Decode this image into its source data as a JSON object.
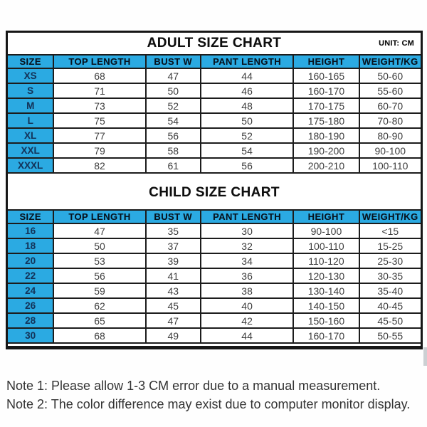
{
  "colors": {
    "header_blue": "#2baae2",
    "grid_line": "#1c1c1c",
    "size_text_navy": "#14365c"
  },
  "charts": [
    {
      "id": "adult",
      "title": "ADULT SIZE CHART",
      "unit": "UNIT: CM",
      "columns": [
        "SIZE",
        "TOP LENGTH",
        "BUST W",
        "PANT LENGTH",
        "HEIGHT",
        "WEIGHT/KG"
      ],
      "rows": [
        [
          "XS",
          "68",
          "47",
          "44",
          "160-165",
          "50-60"
        ],
        [
          "S",
          "71",
          "50",
          "46",
          "160-170",
          "55-60"
        ],
        [
          "M",
          "73",
          "52",
          "48",
          "170-175",
          "60-70"
        ],
        [
          "L",
          "75",
          "54",
          "50",
          "175-180",
          "70-80"
        ],
        [
          "XL",
          "77",
          "56",
          "52",
          "180-190",
          "80-90"
        ],
        [
          "XXL",
          "79",
          "58",
          "54",
          "190-200",
          "90-100"
        ],
        [
          "XXXL",
          "82",
          "61",
          "56",
          "200-210",
          "100-110"
        ]
      ]
    },
    {
      "id": "child",
      "title": "CHILD SIZE CHART",
      "columns": [
        "SIZE",
        "TOP LENGTH",
        "BUST W",
        "PANT LENGTH",
        "HEIGHT",
        "WEIGHT/KG"
      ],
      "rows": [
        [
          "16",
          "47",
          "35",
          "30",
          "90-100",
          "<15"
        ],
        [
          "18",
          "50",
          "37",
          "32",
          "100-110",
          "15-25"
        ],
        [
          "20",
          "53",
          "39",
          "34",
          "110-120",
          "25-30"
        ],
        [
          "22",
          "56",
          "41",
          "36",
          "120-130",
          "30-35"
        ],
        [
          "24",
          "59",
          "43",
          "38",
          "130-140",
          "35-40"
        ],
        [
          "26",
          "62",
          "45",
          "40",
          "140-150",
          "40-45"
        ],
        [
          "28",
          "65",
          "47",
          "42",
          "150-160",
          "45-50"
        ],
        [
          "30",
          "68",
          "49",
          "44",
          "160-170",
          "50-55"
        ]
      ]
    }
  ],
  "notes": [
    "Note 1: Please allow 1-3 CM error due to a manual measurement.",
    "Note 2: The color difference may exist due to computer monitor display."
  ]
}
